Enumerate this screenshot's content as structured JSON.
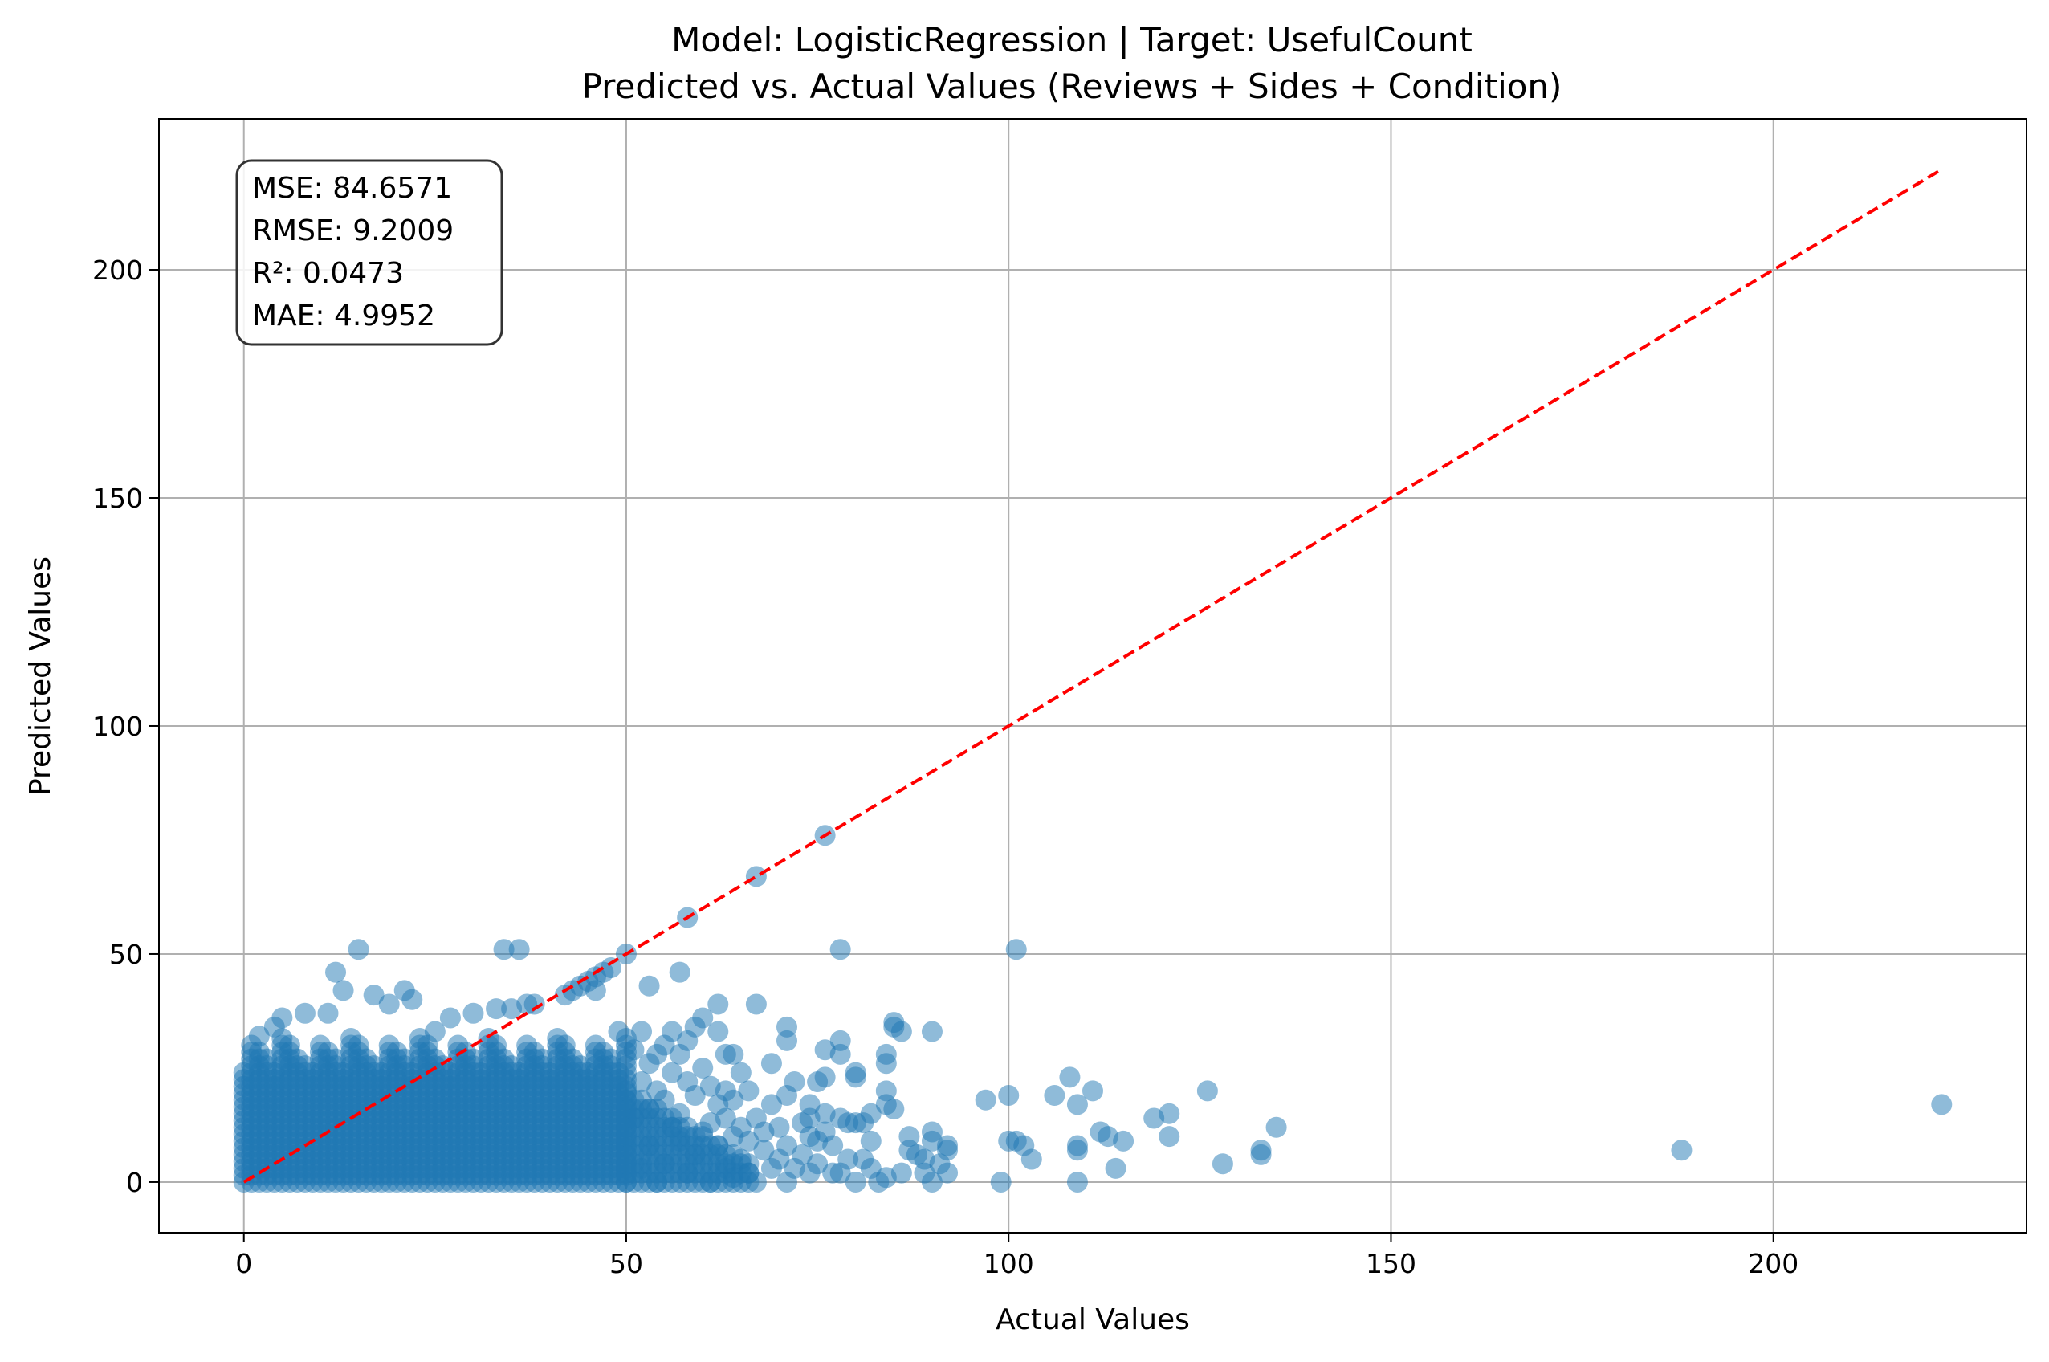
{
  "chart_data": {
    "type": "scatter",
    "title": "Model: LogisticRegression | Target: UsefulCount",
    "subtitle": "Predicted vs. Actual Values (Reviews + Sides + Condition)",
    "xlabel": "Actual Values",
    "ylabel": "Predicted Values",
    "xlim": [
      -11.1,
      233.1
    ],
    "ylim": [
      -11.1,
      233.1
    ],
    "xticks": [
      0,
      50,
      100,
      150,
      200
    ],
    "yticks": [
      0,
      50,
      100,
      150,
      200
    ],
    "grid": true,
    "colors": {
      "points": "#1f77b4",
      "reference_line": "#ff0000",
      "grid": "#b0b0b0"
    },
    "reference_line": {
      "x": [
        0,
        222
      ],
      "y": [
        0,
        222
      ],
      "style": "dashed"
    },
    "metrics": [
      "MSE: 84.6571",
      "RMSE: 9.2009",
      "R²: 0.0473",
      "MAE: 4.9952"
    ],
    "dense_region": {
      "description_note": "dense cluster of overlapping points",
      "x_range": [
        0,
        50
      ],
      "y_range": [
        0,
        32
      ]
    },
    "points": [
      [
        222,
        17
      ],
      [
        188,
        7
      ],
      [
        135,
        12
      ],
      [
        133,
        6
      ],
      [
        133,
        7
      ],
      [
        128,
        4
      ],
      [
        126,
        20
      ],
      [
        121,
        15
      ],
      [
        121,
        10
      ],
      [
        119,
        14
      ],
      [
        115,
        9
      ],
      [
        114,
        3
      ],
      [
        113,
        10
      ],
      [
        112,
        11
      ],
      [
        111,
        20
      ],
      [
        109,
        17
      ],
      [
        109,
        0
      ],
      [
        109,
        8
      ],
      [
        109,
        7
      ],
      [
        108,
        23
      ],
      [
        106,
        19
      ],
      [
        103,
        5
      ],
      [
        102,
        8
      ],
      [
        101,
        51
      ],
      [
        101,
        9
      ],
      [
        100,
        19
      ],
      [
        100,
        9
      ],
      [
        99,
        0
      ],
      [
        97,
        18
      ],
      [
        92,
        8
      ],
      [
        92,
        7
      ],
      [
        92,
        2
      ],
      [
        91,
        4
      ],
      [
        90,
        33
      ],
      [
        90,
        11
      ],
      [
        90,
        9
      ],
      [
        90,
        0
      ],
      [
        89,
        5
      ],
      [
        89,
        2
      ],
      [
        88,
        6
      ],
      [
        87,
        10
      ],
      [
        87,
        7
      ],
      [
        86,
        33
      ],
      [
        86,
        2
      ],
      [
        85,
        35
      ],
      [
        85,
        34
      ],
      [
        85,
        16
      ],
      [
        84,
        28
      ],
      [
        84,
        26
      ],
      [
        84,
        20
      ],
      [
        84,
        17
      ],
      [
        84,
        1
      ],
      [
        83,
        0
      ],
      [
        82,
        15
      ],
      [
        82,
        9
      ],
      [
        82,
        3
      ],
      [
        81,
        13
      ],
      [
        81,
        5
      ],
      [
        80,
        24
      ],
      [
        80,
        23
      ],
      [
        80,
        13
      ],
      [
        80,
        0
      ],
      [
        79,
        13
      ],
      [
        79,
        5
      ],
      [
        78,
        51
      ],
      [
        78,
        31
      ],
      [
        78,
        28
      ],
      [
        78,
        14
      ],
      [
        78,
        2
      ],
      [
        77,
        8
      ],
      [
        77,
        2
      ],
      [
        76,
        76
      ],
      [
        76,
        29
      ],
      [
        76,
        23
      ],
      [
        76,
        15
      ],
      [
        76,
        11
      ],
      [
        75,
        22
      ],
      [
        75,
        9
      ],
      [
        75,
        4
      ],
      [
        74,
        17
      ],
      [
        74,
        14
      ],
      [
        74,
        10
      ],
      [
        74,
        2
      ],
      [
        73,
        13
      ],
      [
        73,
        6
      ],
      [
        72,
        22
      ],
      [
        72,
        3
      ],
      [
        71,
        34
      ],
      [
        71,
        31
      ],
      [
        71,
        19
      ],
      [
        71,
        8
      ],
      [
        71,
        0
      ],
      [
        70,
        12
      ],
      [
        70,
        5
      ],
      [
        69,
        26
      ],
      [
        69,
        17
      ],
      [
        69,
        3
      ],
      [
        68,
        11
      ],
      [
        68,
        7
      ],
      [
        67,
        67
      ],
      [
        67,
        39
      ],
      [
        67,
        14
      ],
      [
        67,
        0
      ],
      [
        66,
        20
      ],
      [
        66,
        9
      ],
      [
        66,
        2
      ],
      [
        65,
        24
      ],
      [
        65,
        12
      ],
      [
        65,
        5
      ],
      [
        64,
        28
      ],
      [
        64,
        18
      ],
      [
        64,
        10
      ],
      [
        64,
        1
      ],
      [
        63,
        28
      ],
      [
        63,
        20
      ],
      [
        63,
        14
      ],
      [
        63,
        3
      ],
      [
        62,
        39
      ],
      [
        62,
        33
      ],
      [
        62,
        17
      ],
      [
        62,
        8
      ],
      [
        61,
        21
      ],
      [
        61,
        13
      ],
      [
        61,
        0
      ],
      [
        60,
        36
      ],
      [
        60,
        25
      ],
      [
        60,
        11
      ],
      [
        59,
        34
      ],
      [
        59,
        19
      ],
      [
        59,
        6
      ],
      [
        58,
        58
      ],
      [
        58,
        31
      ],
      [
        58,
        22
      ],
      [
        58,
        2
      ],
      [
        57,
        46
      ],
      [
        57,
        28
      ],
      [
        57,
        15
      ],
      [
        57,
        9
      ],
      [
        56,
        33
      ],
      [
        56,
        24
      ],
      [
        56,
        12
      ],
      [
        55,
        30
      ],
      [
        55,
        18
      ],
      [
        55,
        4
      ],
      [
        54,
        28
      ],
      [
        54,
        20
      ],
      [
        54,
        0
      ],
      [
        53,
        43
      ],
      [
        53,
        26
      ],
      [
        53,
        16
      ],
      [
        53,
        8
      ],
      [
        52,
        33
      ],
      [
        52,
        22
      ],
      [
        52,
        3
      ],
      [
        51,
        29
      ],
      [
        51,
        14
      ],
      [
        50,
        50
      ],
      [
        49,
        33
      ],
      [
        48,
        47
      ],
      [
        47,
        46
      ],
      [
        46,
        45
      ],
      [
        46,
        42
      ],
      [
        45,
        44
      ],
      [
        44,
        43
      ],
      [
        43,
        42
      ],
      [
        42,
        41
      ],
      [
        38,
        39
      ],
      [
        37,
        39
      ],
      [
        36,
        51
      ],
      [
        35,
        38
      ],
      [
        34,
        51
      ],
      [
        33,
        38
      ],
      [
        30,
        37
      ],
      [
        27,
        36
      ],
      [
        25,
        33
      ],
      [
        21,
        42
      ],
      [
        19,
        39
      ],
      [
        17,
        41
      ],
      [
        15,
        51
      ],
      [
        12,
        46
      ],
      [
        13,
        42
      ],
      [
        8,
        37
      ],
      [
        5,
        36
      ],
      [
        4,
        34
      ],
      [
        11,
        37
      ],
      [
        2,
        32
      ],
      [
        22,
        40
      ]
    ]
  }
}
